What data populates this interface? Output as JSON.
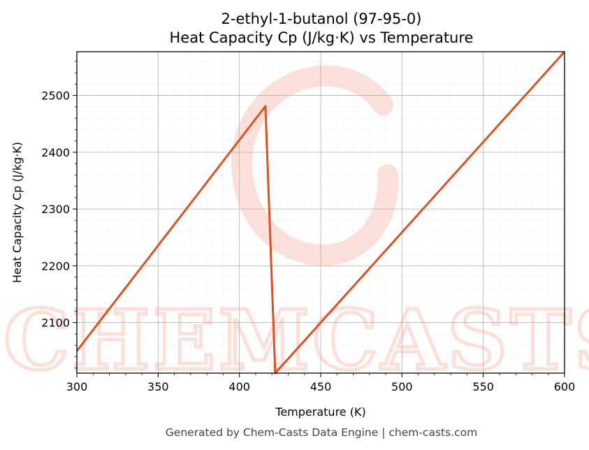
{
  "chart_data": {
    "type": "line",
    "title_lines": [
      "2-ethyl-1-butanol (97-95-0)",
      "Heat Capacity Cp (J/kg·K) vs Temperature"
    ],
    "xlabel": "Temperature (K)",
    "ylabel": "Heat Capacity Cp (J/kg·K)",
    "xlim": [
      300,
      600
    ],
    "ylim": [
      2011,
      2577
    ],
    "x_ticks": [
      300,
      350,
      400,
      450,
      500,
      550,
      600
    ],
    "y_ticks": [
      2100,
      2200,
      2300,
      2400,
      2500
    ],
    "grid": true,
    "series": [
      {
        "color": "#d95222",
        "x": [
          300,
          416,
          422,
          600
        ],
        "y": [
          2050,
          2481,
          2011,
          2577
        ]
      }
    ]
  },
  "footer": "Generated by Chem-Casts Data Engine | chem-casts.com",
  "watermark_text": "CHEMCASTS",
  "watermark_color": "#f9c0b2"
}
